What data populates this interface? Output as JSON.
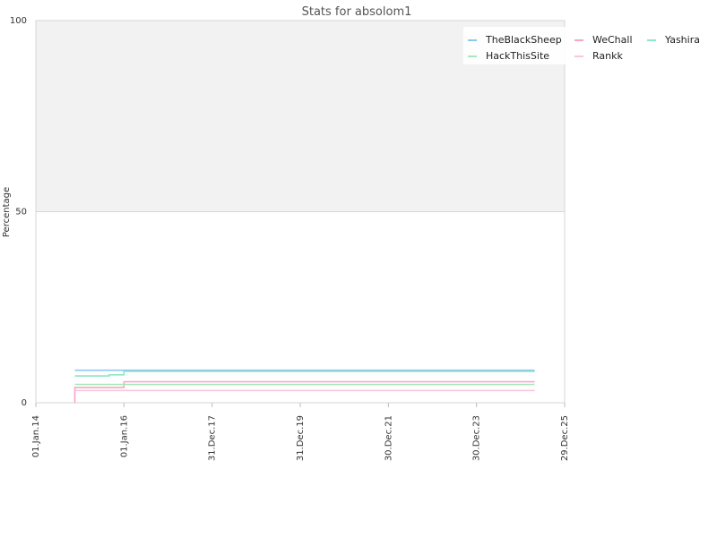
{
  "chart_data": {
    "type": "line",
    "title": "Stats for absolom1",
    "xlabel": "",
    "ylabel": "Percentage",
    "ylim": [
      0,
      100
    ],
    "yticks": [
      0,
      50,
      100
    ],
    "xlim": [
      "2014-01-01",
      "2025-12-29"
    ],
    "xticks": [
      {
        "date": "2014-01-01",
        "label": "01.Jan.14"
      },
      {
        "date": "2016-01-01",
        "label": "01.Jan.16"
      },
      {
        "date": "2017-12-31",
        "label": "31.Dec.17"
      },
      {
        "date": "2019-12-31",
        "label": "31.Dec.19"
      },
      {
        "date": "2021-12-30",
        "label": "30.Dec.21"
      },
      {
        "date": "2023-12-30",
        "label": "30.Dec.23"
      },
      {
        "date": "2025-12-29",
        "label": "29.Dec.25"
      }
    ],
    "grid": true,
    "upper_band": {
      "from": 50,
      "to": 100,
      "color": "#f2f2f2"
    },
    "legend_position": "top-right",
    "step": true,
    "series": [
      {
        "name": "TheBlackSheep",
        "color": "#8ec8ec",
        "points": [
          [
            "2014-11-20",
            8.5
          ],
          [
            "2025-04-25",
            8.5
          ]
        ]
      },
      {
        "name": "WeChall",
        "color": "#f4a6c8",
        "points": [
          [
            "2014-11-20",
            0
          ],
          [
            "2014-11-20",
            4.0
          ],
          [
            "2016-01-01",
            4.0
          ],
          [
            "2016-01-01",
            5.5
          ],
          [
            "2025-04-25",
            5.5
          ]
        ]
      },
      {
        "name": "Yashira",
        "color": "#8ee6c8",
        "points": [
          [
            "2014-11-20",
            7.0
          ],
          [
            "2015-09-01",
            7.0
          ],
          [
            "2015-09-01",
            7.3
          ],
          [
            "2016-01-01",
            7.3
          ],
          [
            "2016-01-01",
            8.2
          ],
          [
            "2025-04-25",
            8.2
          ]
        ]
      },
      {
        "name": "HackThisSite",
        "color": "#a8e8b8",
        "points": [
          [
            "2014-11-20",
            4.8
          ],
          [
            "2025-04-25",
            4.8
          ]
        ]
      },
      {
        "name": "Rankk",
        "color": "#f8c8d8",
        "points": [
          [
            "2014-11-20",
            3.2
          ],
          [
            "2025-04-25",
            3.2
          ]
        ]
      }
    ]
  }
}
